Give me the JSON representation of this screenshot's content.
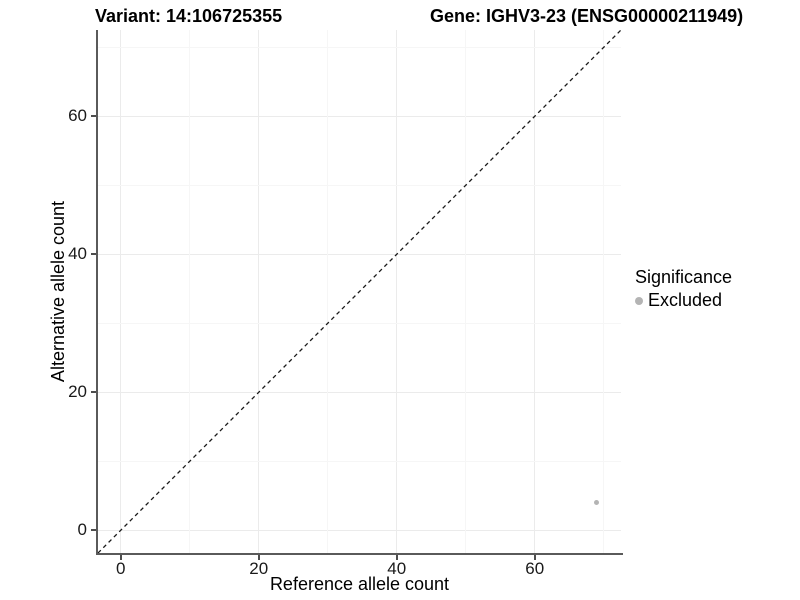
{
  "header": {
    "variant_title": "Variant: 14:106725355",
    "gene_title": "Gene: IGHV3-23 (ENSG00000211949)"
  },
  "chart_data": {
    "type": "scatter",
    "title_left": "Variant: 14:106725355",
    "title_right": "Gene: IGHV3-23 (ENSG00000211949)",
    "xlabel": "Reference allele count",
    "ylabel": "Alternative allele count",
    "xlim": [
      -3.3,
      72.5
    ],
    "ylim": [
      -3.3,
      72.5
    ],
    "x_ticks": [
      0,
      20,
      40,
      60
    ],
    "y_ticks": [
      0,
      20,
      40,
      60
    ],
    "x_minor_gridlines": [
      10,
      30,
      50,
      70
    ],
    "y_minor_gridlines": [
      10,
      30,
      50,
      70
    ],
    "grid": "on",
    "points": [
      {
        "x": 69,
        "y": 4,
        "series": "Excluded"
      }
    ],
    "reference_line": {
      "slope": 1,
      "intercept": 0,
      "style": "dashed",
      "color": "#1a1a1a"
    },
    "legend": {
      "title": "Significance",
      "position": "right",
      "items": [
        {
          "label": "Excluded",
          "color": "#b4b4b4"
        }
      ]
    },
    "colors": {
      "grid_major": "#ebebeb",
      "grid_minor": "#f6f6f6",
      "axis_line": "#5a5a5a",
      "point_excluded": "#b4b4b4"
    }
  }
}
